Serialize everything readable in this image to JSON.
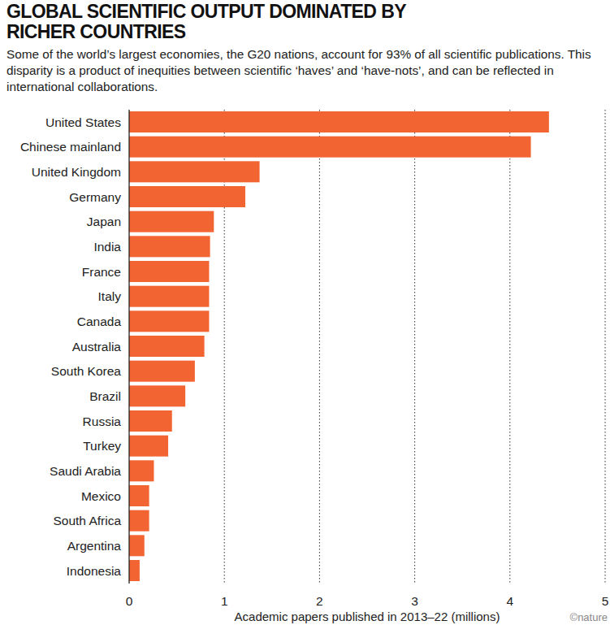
{
  "chart_data": {
    "type": "bar",
    "orientation": "horizontal",
    "title": "GLOBAL SCIENTIFIC OUTPUT DOMINATED BY RICHER COUNTRIES",
    "subtitle": "Some of the world’s largest economies, the G20 nations, account for 93% of all scientific publications. This disparity is a product of inequities between scientific ‘haves’ and ‘have-nots’, and can be reflected in international collaborations.",
    "categories": [
      "United States",
      "Chinese mainland",
      "United Kingdom",
      "Germany",
      "Japan",
      "India",
      "France",
      "Italy",
      "Canada",
      "Australia",
      "South Korea",
      "Brazil",
      "Russia",
      "Turkey",
      "Saudi Arabia",
      "Mexico",
      "South Africa",
      "Argentina",
      "Indonesia"
    ],
    "values": [
      4.41,
      4.22,
      1.37,
      1.22,
      0.89,
      0.85,
      0.84,
      0.84,
      0.84,
      0.79,
      0.69,
      0.59,
      0.45,
      0.41,
      0.26,
      0.21,
      0.21,
      0.16,
      0.11
    ],
    "color": "#f26532",
    "xlabel": "Academic papers published in 2013–22 (millions)",
    "credit": "©nature",
    "xlim": [
      0,
      5
    ],
    "xticks": [
      0,
      1,
      2,
      3,
      4,
      5
    ],
    "grid": true
  }
}
